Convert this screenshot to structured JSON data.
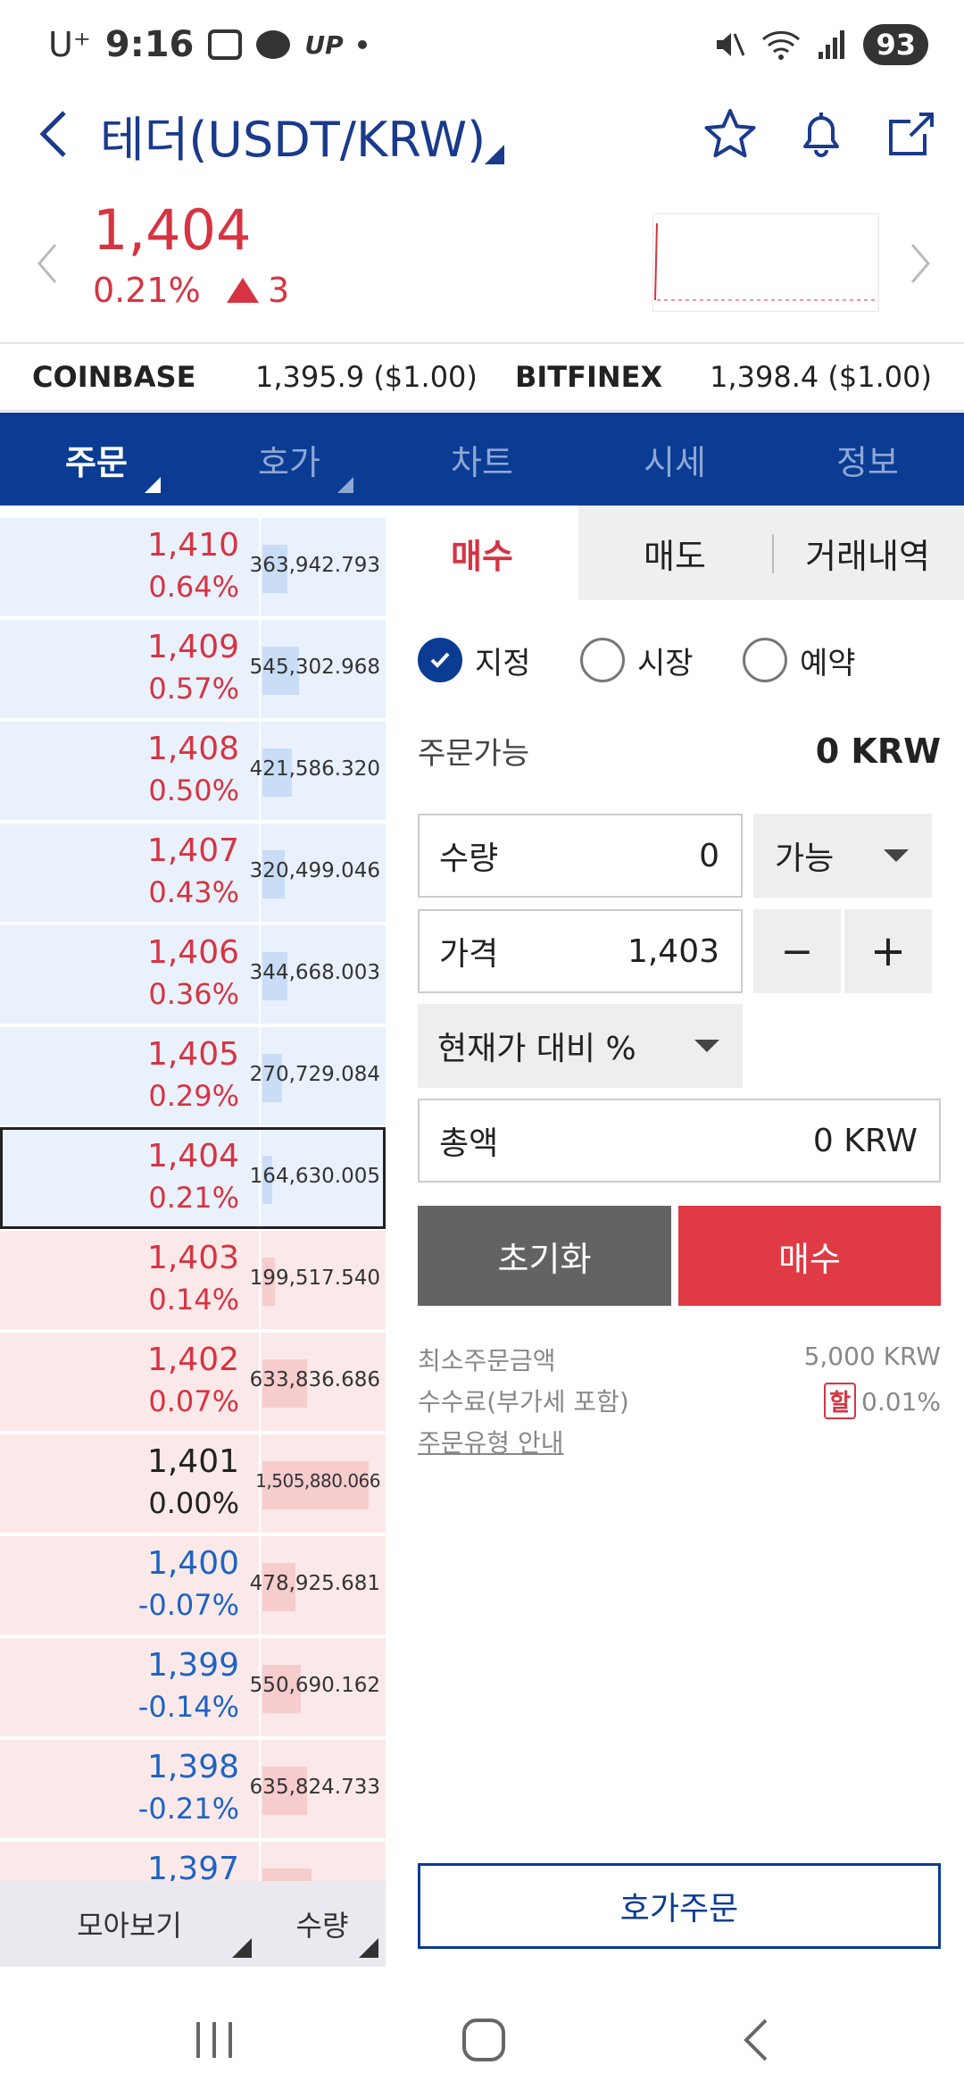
{
  "status_bar": {
    "carrier": "U⁺",
    "time": "9:16",
    "up_label": "UP",
    "battery": "93"
  },
  "header": {
    "title": "테더(USDT/KRW)"
  },
  "price": {
    "current": "1,404",
    "rate": "0.21%",
    "change": "3",
    "color_up": "#d63442"
  },
  "exchanges": [
    {
      "name": "COINBASE",
      "value": "1,395.9 ($1.00)"
    },
    {
      "name": "BITFINEX",
      "value": "1,398.4 ($1.00)"
    }
  ],
  "tabs": [
    {
      "label": "주문"
    },
    {
      "label": "호가"
    },
    {
      "label": "차트"
    },
    {
      "label": "시세"
    },
    {
      "label": "정보"
    }
  ],
  "orderbook": {
    "rows": [
      {
        "price": "1,410",
        "rate": "0.64%",
        "qty": "363,942.793",
        "side": "sell",
        "bar": 0.2
      },
      {
        "price": "1,409",
        "rate": "0.57%",
        "qty": "545,302.968",
        "side": "sell",
        "bar": 0.3
      },
      {
        "price": "1,408",
        "rate": "0.50%",
        "qty": "421,586.320",
        "side": "sell",
        "bar": 0.24
      },
      {
        "price": "1,407",
        "rate": "0.43%",
        "qty": "320,499.046",
        "side": "sell",
        "bar": 0.18
      },
      {
        "price": "1,406",
        "rate": "0.36%",
        "qty": "344,668.003",
        "side": "sell",
        "bar": 0.2
      },
      {
        "price": "1,405",
        "rate": "0.29%",
        "qty": "270,729.084",
        "side": "sell",
        "bar": 0.16
      },
      {
        "price": "1,404",
        "rate": "0.21%",
        "qty": "164,630.005",
        "side": "sell",
        "bar": 0.08
      },
      {
        "price": "1,403",
        "rate": "0.14%",
        "qty": "199,517.540",
        "side": "buy",
        "bar": 0.1
      },
      {
        "price": "1,402",
        "rate": "0.07%",
        "qty": "633,836.686",
        "side": "buy",
        "bar": 0.36
      },
      {
        "price": "1,401",
        "rate": "0.00%",
        "qty": "1,505,880.066",
        "side": "buy",
        "bar": 0.86
      },
      {
        "price": "1,400",
        "rate": "-0.07%",
        "qty": "478,925.681",
        "side": "buy",
        "bar": 0.27
      },
      {
        "price": "1,399",
        "rate": "-0.14%",
        "qty": "550,690.162",
        "side": "buy",
        "bar": 0.31
      },
      {
        "price": "1,398",
        "rate": "-0.21%",
        "qty": "635,824.733",
        "side": "buy",
        "bar": 0.36
      },
      {
        "price": "1,397",
        "rate": "",
        "qty": "",
        "side": "buy",
        "bar": 0.4
      }
    ],
    "footer_left": "모아보기",
    "footer_right": "수량"
  },
  "order_panel": {
    "sub_tabs": [
      "매수",
      "매도",
      "거래내역"
    ],
    "radios": [
      {
        "label": "지정",
        "checked": true
      },
      {
        "label": "시장",
        "checked": false
      },
      {
        "label": "예약",
        "checked": false
      }
    ],
    "available_label": "주문가능",
    "available_value": "0 KRW",
    "quantity_label": "수량",
    "quantity_value": "0",
    "possible_label": "가능",
    "price_label": "가격",
    "price_value": "1,403",
    "minus": "−",
    "plus": "+",
    "percent_label": "현재가 대비 %",
    "total_label": "총액",
    "total_value": "0 KRW",
    "reset_label": "초기화",
    "buy_label": "매수",
    "min_order_label": "최소주문금액",
    "min_order_value": "5,000 KRW",
    "fee_label": "수수료(부가세 포함)",
    "fee_badge": "할",
    "fee_value": "0.01%",
    "guide_label": "주문유형 안내",
    "hoga_order_label": "호가주문"
  }
}
